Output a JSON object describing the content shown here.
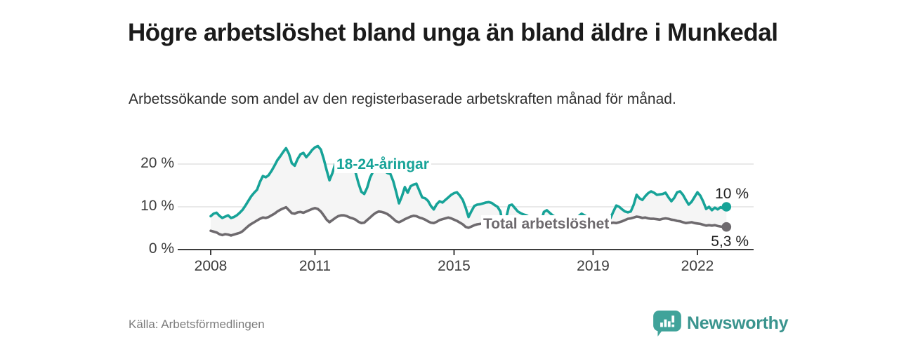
{
  "header": {
    "title": "Högre arbetslöshet bland unga än bland äldre i Munkedal",
    "subtitle": "Arbetssökande som andel av den registerbaserade arbetskraften månad för månad."
  },
  "footer": {
    "source": "Källa: Arbetsförmedlingen",
    "brand": "Newsworthy"
  },
  "colors": {
    "youth_line": "#17a398",
    "total_line": "#6e6a6e",
    "band_fill": "#f5f5f5",
    "gridline": "#dcdcdc",
    "axis": "#3d3d3d",
    "logo_teal": "#40a39a"
  },
  "chart_data": {
    "type": "line",
    "title": "Högre arbetslöshet bland unga än bland äldre i Munkedal",
    "subtitle": "Arbetssökande som andel av den registerbaserade arbetskraften månad för månad.",
    "unit": "%",
    "frequency": "monthly",
    "start": "2008-01",
    "end": "2022-11",
    "ylim": [
      0,
      25
    ],
    "grid": "horizontal",
    "legend_position": "inline-labels",
    "x_ticks": [
      2008,
      2011,
      2015,
      2019,
      2022
    ],
    "y_ticks": [
      {
        "value": 0,
        "label": "0 %"
      },
      {
        "value": 10,
        "label": "10 %"
      },
      {
        "value": 20,
        "label": "20 %"
      }
    ],
    "series": [
      {
        "name": "18-24-åringar",
        "label_text": "18-24-åringar",
        "end_label": "10 %",
        "color": "#17a398",
        "values": [
          7.8,
          8.4,
          8.6,
          7.9,
          7.4,
          7.7,
          8.0,
          7.4,
          7.6,
          8.0,
          8.6,
          9.3,
          10.3,
          11.4,
          12.5,
          13.3,
          14.0,
          15.8,
          17.2,
          16.9,
          17.4,
          18.4,
          19.6,
          20.9,
          21.8,
          22.8,
          23.7,
          22.4,
          20.2,
          19.6,
          21.2,
          22.3,
          22.6,
          21.6,
          22.4,
          23.3,
          23.9,
          24.2,
          23.4,
          21.2,
          18.6,
          16.2,
          17.9,
          20.1,
          20.3,
          20.1,
          19.9,
          19.6,
          19.2,
          19.5,
          18.0,
          15.5,
          13.5,
          13.0,
          14.5,
          16.8,
          18.2,
          18.8,
          19.0,
          18.9,
          18.4,
          17.9,
          17.7,
          16.0,
          13.5,
          10.8,
          12.5,
          14.6,
          13.3,
          14.8,
          15.2,
          15.4,
          13.8,
          12.2,
          12.0,
          11.4,
          10.2,
          9.4,
          10.6,
          11.3,
          11.0,
          11.6,
          12.2,
          12.8,
          13.2,
          13.4,
          12.6,
          11.6,
          9.8,
          7.6,
          9.0,
          10.2,
          10.5,
          10.6,
          10.8,
          11.0,
          11.1,
          10.9,
          10.4,
          10.0,
          8.9,
          5.1,
          7.5,
          10.3,
          10.5,
          9.7,
          8.9,
          8.5,
          8.2,
          8.0,
          7.6,
          7.0,
          6.0,
          4.8,
          6.5,
          8.8,
          9.2,
          8.6,
          8.0,
          7.6,
          7.4,
          7.2,
          6.8,
          6.2,
          5.4,
          4.4,
          5.8,
          7.8,
          8.4,
          8.0,
          7.6,
          7.2,
          7.0,
          6.9,
          6.8,
          6.6,
          6.4,
          6.6,
          7.4,
          8.9,
          10.3,
          10.0,
          9.4,
          8.9,
          8.7,
          8.9,
          10.5,
          12.8,
          12.0,
          11.6,
          12.5,
          13.2,
          13.6,
          13.3,
          12.8,
          12.9,
          13.0,
          13.3,
          12.2,
          11.3,
          12.1,
          13.4,
          13.6,
          12.8,
          11.6,
          10.5,
          11.2,
          12.3,
          13.4,
          12.6,
          11.2,
          9.5,
          10.0,
          9.2,
          9.8,
          9.4,
          9.9,
          9.6,
          10.0
        ]
      },
      {
        "name": "Total arbetslöshet",
        "label_text": "Total arbetslöshet",
        "end_label": "5,3 %",
        "color": "#6e6a6e",
        "values": [
          4.4,
          4.2,
          4.0,
          3.6,
          3.4,
          3.6,
          3.5,
          3.3,
          3.5,
          3.7,
          3.9,
          4.3,
          4.9,
          5.5,
          6.0,
          6.4,
          6.8,
          7.2,
          7.5,
          7.4,
          7.6,
          8.0,
          8.4,
          8.9,
          9.3,
          9.6,
          9.9,
          9.2,
          8.5,
          8.4,
          8.7,
          8.8,
          8.6,
          8.9,
          9.2,
          9.5,
          9.7,
          9.5,
          8.9,
          8.0,
          7.0,
          6.4,
          6.9,
          7.4,
          7.8,
          8.0,
          8.0,
          7.8,
          7.5,
          7.3,
          7.0,
          6.5,
          6.2,
          6.3,
          6.9,
          7.5,
          8.1,
          8.6,
          8.9,
          8.8,
          8.6,
          8.3,
          7.8,
          7.2,
          6.6,
          6.4,
          6.7,
          7.1,
          7.4,
          7.7,
          7.9,
          7.8,
          7.5,
          7.3,
          7.0,
          6.6,
          6.3,
          6.2,
          6.5,
          6.9,
          7.1,
          7.3,
          7.5,
          7.3,
          7.0,
          6.7,
          6.3,
          5.9,
          5.3,
          5.1,
          5.4,
          5.7,
          5.9,
          6.0,
          6.1,
          6.2,
          6.3,
          6.4,
          6.3,
          6.1,
          5.8,
          5.6,
          5.9,
          6.3,
          6.6,
          6.7,
          6.8,
          6.9,
          7.0,
          7.0,
          6.9,
          6.7,
          6.4,
          6.2,
          6.5,
          6.9,
          7.2,
          7.3,
          7.3,
          7.2,
          7.0,
          6.9,
          6.7,
          6.4,
          6.1,
          5.9,
          6.1,
          6.4,
          6.6,
          6.6,
          6.5,
          6.4,
          6.3,
          6.2,
          6.1,
          6.0,
          5.9,
          6.0,
          6.2,
          6.3,
          6.2,
          6.4,
          6.6,
          6.9,
          7.2,
          7.3,
          7.5,
          7.7,
          7.6,
          7.4,
          7.5,
          7.3,
          7.2,
          7.2,
          7.1,
          7.0,
          7.2,
          7.3,
          7.2,
          7.0,
          6.9,
          6.7,
          6.6,
          6.4,
          6.2,
          6.3,
          6.4,
          6.2,
          6.1,
          6.0,
          5.8,
          5.6,
          5.7,
          5.6,
          5.7,
          5.5,
          5.4,
          5.3,
          5.3
        ]
      }
    ]
  }
}
